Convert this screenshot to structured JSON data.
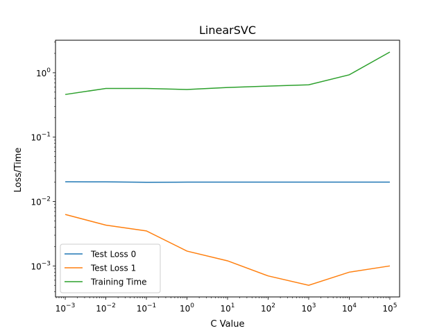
{
  "chart_data": {
    "type": "line",
    "title": "LinearSVC",
    "xlabel": "C Value",
    "ylabel": "Loss/Time",
    "xscale": "log",
    "yscale": "log",
    "xlim": [
      0.000575,
      174000
    ],
    "ylim": [
      0.00033,
      3.2
    ],
    "x": [
      0.001,
      0.01,
      0.1,
      1,
      10,
      100,
      1000,
      10000,
      100000
    ],
    "x_tick_labels": [
      {
        "base": "10",
        "exp": "−3"
      },
      {
        "base": "10",
        "exp": "−2"
      },
      {
        "base": "10",
        "exp": "−1"
      },
      {
        "base": "10",
        "exp": "0"
      },
      {
        "base": "10",
        "exp": "1"
      },
      {
        "base": "10",
        "exp": "2"
      },
      {
        "base": "10",
        "exp": "3"
      },
      {
        "base": "10",
        "exp": "4"
      },
      {
        "base": "10",
        "exp": "5"
      }
    ],
    "y_tick_values": [
      0.001,
      0.01,
      0.1,
      1
    ],
    "y_tick_labels": [
      {
        "base": "10",
        "exp": "−3"
      },
      {
        "base": "10",
        "exp": "−2"
      },
      {
        "base": "10",
        "exp": "−1"
      },
      {
        "base": "10",
        "exp": "0"
      }
    ],
    "grid": false,
    "legend_position": "lower-left",
    "series": [
      {
        "name": "Test Loss 0",
        "color": "#1f77b4",
        "values": [
          0.0203,
          0.0202,
          0.0199,
          0.02,
          0.02,
          0.02,
          0.02,
          0.02,
          0.02
        ]
      },
      {
        "name": "Test Loss 1",
        "color": "#ff7f0e",
        "values": [
          0.0063,
          0.0043,
          0.0035,
          0.0017,
          0.0012,
          0.0007,
          0.0005,
          0.0008,
          0.001
        ]
      },
      {
        "name": "Training Time",
        "color": "#2ca02c",
        "values": [
          0.46,
          0.57,
          0.57,
          0.55,
          0.59,
          0.62,
          0.65,
          0.93,
          2.1
        ]
      }
    ]
  }
}
